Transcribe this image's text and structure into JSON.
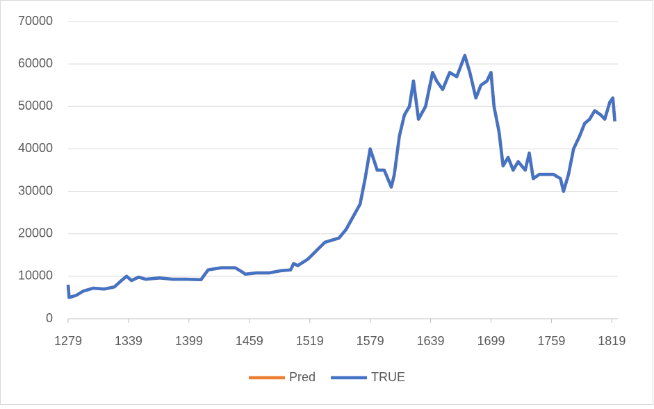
{
  "chart_data": {
    "type": "line",
    "x": [
      1279,
      1280,
      1287,
      1294,
      1304,
      1315,
      1325,
      1332,
      1337,
      1342,
      1349,
      1356,
      1370,
      1383,
      1397,
      1411,
      1418,
      1431,
      1445,
      1452,
      1455,
      1466,
      1479,
      1490,
      1500,
      1503,
      1507,
      1517,
      1534,
      1548,
      1555,
      1562,
      1569,
      1574,
      1579,
      1586,
      1593,
      1600,
      1603,
      1608,
      1613,
      1618,
      1622,
      1627,
      1634,
      1641,
      1645,
      1651,
      1658,
      1665,
      1673,
      1678,
      1684,
      1689,
      1695,
      1699,
      1702,
      1707,
      1711,
      1716,
      1721,
      1726,
      1733,
      1737,
      1741,
      1747,
      1754,
      1761,
      1768,
      1771,
      1776,
      1781,
      1787,
      1792,
      1797,
      1802,
      1808,
      1812,
      1817,
      1820,
      1822
    ],
    "series": [
      {
        "name": "Pred",
        "color": "#ed7d31",
        "values": [
          8000,
          5000,
          5500,
          6500,
          7200,
          7000,
          7500,
          9000,
          10000,
          9000,
          9800,
          9300,
          9600,
          9300,
          9300,
          9200,
          11500,
          12000,
          12000,
          11000,
          10500,
          10800,
          10800,
          11300,
          11500,
          13000,
          12500,
          14000,
          18000,
          19000,
          21000,
          24000,
          27000,
          33000,
          40000,
          35000,
          35000,
          31000,
          34000,
          43000,
          48000,
          50000,
          56000,
          47000,
          50000,
          58000,
          56000,
          54000,
          58000,
          57000,
          62000,
          58000,
          52000,
          55000,
          56000,
          58000,
          50000,
          44000,
          36000,
          38000,
          35000,
          37000,
          35000,
          39000,
          33000,
          34000,
          34000,
          34000,
          33000,
          30000,
          34000,
          40000,
          43000,
          46000,
          47000,
          49000,
          48000,
          47000,
          51000,
          52000,
          46500
        ]
      },
      {
        "name": "TRUE",
        "color": "#4472c4",
        "values": [
          8000,
          5000,
          5500,
          6500,
          7200,
          7000,
          7500,
          9000,
          10000,
          9000,
          9800,
          9300,
          9600,
          9300,
          9300,
          9200,
          11500,
          12000,
          12000,
          11000,
          10500,
          10800,
          10800,
          11300,
          11500,
          13000,
          12500,
          14000,
          18000,
          19000,
          21000,
          24000,
          27000,
          33000,
          40000,
          35000,
          35000,
          31000,
          34000,
          43000,
          48000,
          50000,
          56000,
          47000,
          50000,
          58000,
          56000,
          54000,
          58000,
          57000,
          62000,
          58000,
          52000,
          55000,
          56000,
          58000,
          50000,
          44000,
          36000,
          38000,
          35000,
          37000,
          35000,
          39000,
          33000,
          34000,
          34000,
          34000,
          33000,
          30000,
          34000,
          40000,
          43000,
          46000,
          47000,
          49000,
          48000,
          47000,
          51000,
          52000,
          46500
        ]
      }
    ],
    "xlim": [
      1279,
      1825
    ],
    "xticks": [
      1279,
      1339,
      1399,
      1459,
      1519,
      1579,
      1639,
      1699,
      1759,
      1819
    ],
    "ylim": [
      0,
      70000
    ],
    "yticks": [
      0,
      10000,
      20000,
      30000,
      40000,
      50000,
      60000,
      70000
    ],
    "grid": true,
    "legend": "bottom"
  }
}
